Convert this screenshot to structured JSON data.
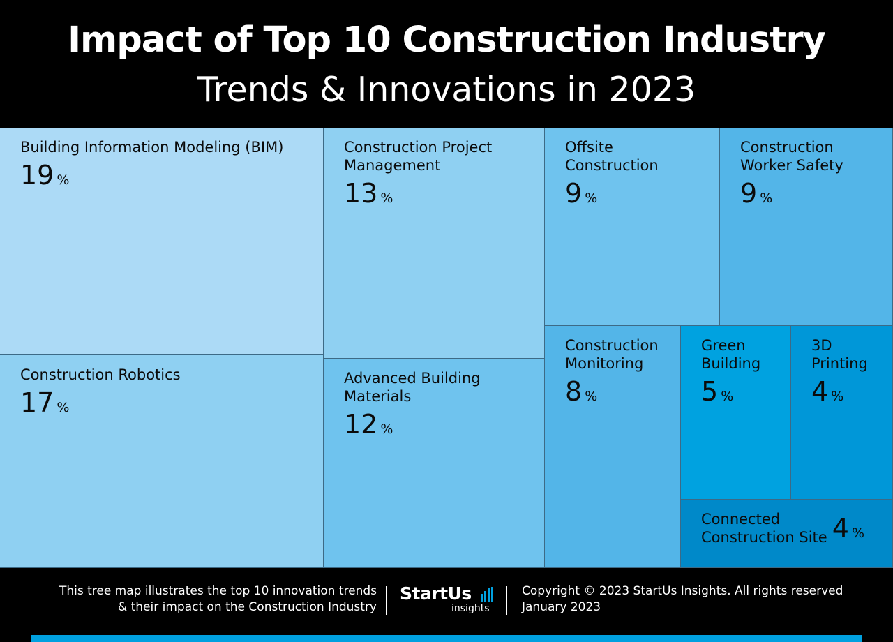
{
  "header": {
    "title_line1": "Impact of Top 10 Construction Industry",
    "title_line2": "Trends & Innovations in 2023"
  },
  "chart_data": {
    "type": "treemap",
    "unit": "%",
    "items": [
      {
        "label": "Building Information Modeling (BIM)",
        "value": 19,
        "color": "#acdaf6"
      },
      {
        "label": "Construction Robotics",
        "value": 17,
        "color": "#8fd0f2"
      },
      {
        "label": "Construction Project Management",
        "value": 13,
        "color": "#8fd0f2"
      },
      {
        "label": "Advanced Building Materials",
        "value": 12,
        "color": "#6fc3ee"
      },
      {
        "label": "Offsite Construction",
        "value": 9,
        "color": "#6fc3ee"
      },
      {
        "label": "Construction Worker Safety",
        "value": 9,
        "color": "#53b5e8"
      },
      {
        "label": "Construction Monitoring",
        "value": 8,
        "color": "#53b5e8"
      },
      {
        "label": "Green Building",
        "value": 5,
        "color": "#00a2e0"
      },
      {
        "label": "3D Printing",
        "value": 4,
        "color": "#0097d8"
      },
      {
        "label": "Connected Construction Site",
        "value": 4,
        "color": "#0089c9"
      }
    ]
  },
  "footer": {
    "description_line1": "This tree map illustrates the top 10 innovation trends",
    "description_line2": "& their impact on the Construction Industry",
    "logo_main": "StartUs",
    "logo_sub": "insights",
    "copyright": "Copyright © 2023 StartUs Insights. All rights reserved",
    "date": "January 2023"
  },
  "colors": {
    "background": "#000000",
    "accent": "#00a0df",
    "logo_bars": "#00a0df"
  }
}
